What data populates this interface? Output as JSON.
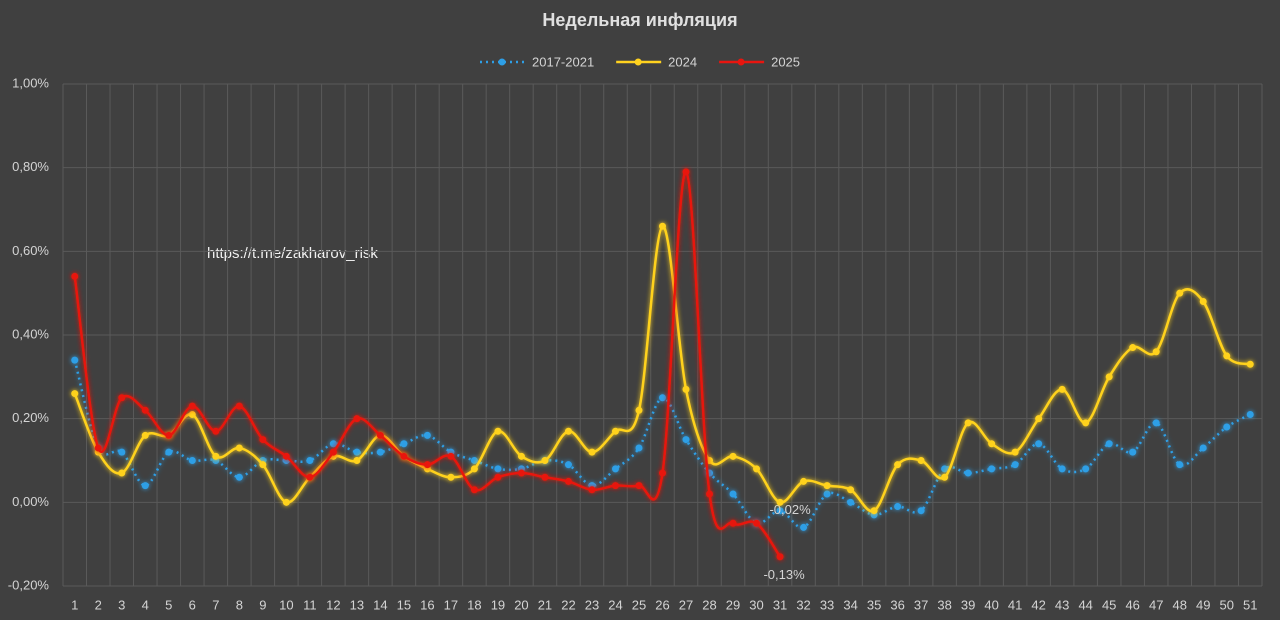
{
  "chart_data": {
    "type": "line",
    "title": "Недельная инфляция",
    "annotation": "https://t.me/zakharov_risk",
    "categories": [
      1,
      2,
      3,
      4,
      5,
      6,
      7,
      8,
      9,
      10,
      11,
      12,
      13,
      14,
      15,
      16,
      17,
      18,
      19,
      20,
      21,
      22,
      23,
      24,
      25,
      26,
      27,
      28,
      29,
      30,
      31,
      32,
      33,
      34,
      35,
      36,
      37,
      38,
      39,
      40,
      41,
      42,
      43,
      44,
      45,
      46,
      47,
      48,
      49,
      50,
      51
    ],
    "ylim": [
      -0.2,
      1.0
    ],
    "yticks": [
      {
        "value": -0.2,
        "label": "-0,20%"
      },
      {
        "value": 0,
        "label": "0,00%"
      },
      {
        "value": 0.2,
        "label": "0,20%"
      },
      {
        "value": 0.4,
        "label": "0,40%"
      },
      {
        "value": 0.6,
        "label": "0,60%"
      },
      {
        "value": 0.8,
        "label": "0,80%"
      },
      {
        "value": 1.0,
        "label": "1,00%"
      }
    ],
    "grid": true,
    "legend": "top",
    "series": [
      {
        "name": "2017-2021",
        "color": "#2e9fe6",
        "dashed": true,
        "values": [
          0.34,
          0.13,
          0.12,
          0.04,
          0.12,
          0.1,
          0.1,
          0.06,
          0.1,
          0.1,
          0.1,
          0.14,
          0.12,
          0.12,
          0.14,
          0.16,
          0.12,
          0.1,
          0.08,
          0.08,
          0.1,
          0.09,
          0.04,
          0.08,
          0.13,
          0.25,
          0.15,
          0.07,
          0.02,
          -0.05,
          -0.02,
          -0.06,
          0.02,
          0.0,
          -0.03,
          -0.01,
          -0.02,
          0.08,
          0.07,
          0.08,
          0.09,
          0.14,
          0.08,
          0.08,
          0.14,
          0.12,
          0.19,
          0.09,
          0.13,
          0.18,
          0.21
        ],
        "value_labels": [
          null,
          null,
          null,
          null,
          null,
          null,
          null,
          null,
          null,
          null,
          null,
          null,
          null,
          null,
          null,
          null,
          null,
          null,
          null,
          null,
          null,
          null,
          null,
          null,
          null,
          null,
          null,
          null,
          null,
          null,
          "-0,02%",
          null,
          null,
          null,
          null,
          null,
          null,
          null,
          null,
          null,
          null,
          null,
          null,
          null,
          null,
          null,
          null,
          null,
          null,
          null,
          null
        ]
      },
      {
        "name": "2024",
        "color": "#ffd21f",
        "dashed": false,
        "values": [
          0.26,
          0.12,
          0.07,
          0.16,
          0.16,
          0.21,
          0.11,
          0.13,
          0.09,
          0.0,
          0.06,
          0.11,
          0.1,
          0.16,
          0.11,
          0.08,
          0.06,
          0.08,
          0.17,
          0.11,
          0.1,
          0.17,
          0.12,
          0.17,
          0.22,
          0.66,
          0.27,
          0.1,
          0.11,
          0.08,
          0.0,
          0.05,
          0.04,
          0.03,
          -0.02,
          0.09,
          0.1,
          0.06,
          0.19,
          0.14,
          0.12,
          0.2,
          0.27,
          0.19,
          0.3,
          0.37,
          0.36,
          0.5,
          0.48,
          0.35,
          0.33
        ]
      },
      {
        "name": "2025",
        "color": "#e8150f",
        "dashed": false,
        "values": [
          0.54,
          0.13,
          0.25,
          0.22,
          0.16,
          0.23,
          0.17,
          0.23,
          0.15,
          0.11,
          0.06,
          0.12,
          0.2,
          0.16,
          0.11,
          0.09,
          0.11,
          0.03,
          0.06,
          0.07,
          0.06,
          0.05,
          0.03,
          0.04,
          0.04,
          0.07,
          0.79,
          0.02,
          -0.05,
          -0.05,
          -0.13,
          null,
          null,
          null,
          null,
          null,
          null,
          null,
          null,
          null,
          null,
          null,
          null,
          null,
          null,
          null,
          null,
          null,
          null,
          null,
          null
        ],
        "value_labels": [
          null,
          null,
          null,
          null,
          null,
          null,
          null,
          null,
          null,
          null,
          null,
          null,
          null,
          null,
          null,
          null,
          null,
          null,
          null,
          null,
          null,
          null,
          null,
          null,
          null,
          null,
          null,
          null,
          null,
          null,
          "-0,13%",
          null,
          null,
          null,
          null,
          null,
          null,
          null,
          null,
          null,
          null,
          null,
          null,
          null,
          null,
          null,
          null,
          null,
          null,
          null,
          null
        ]
      }
    ]
  }
}
